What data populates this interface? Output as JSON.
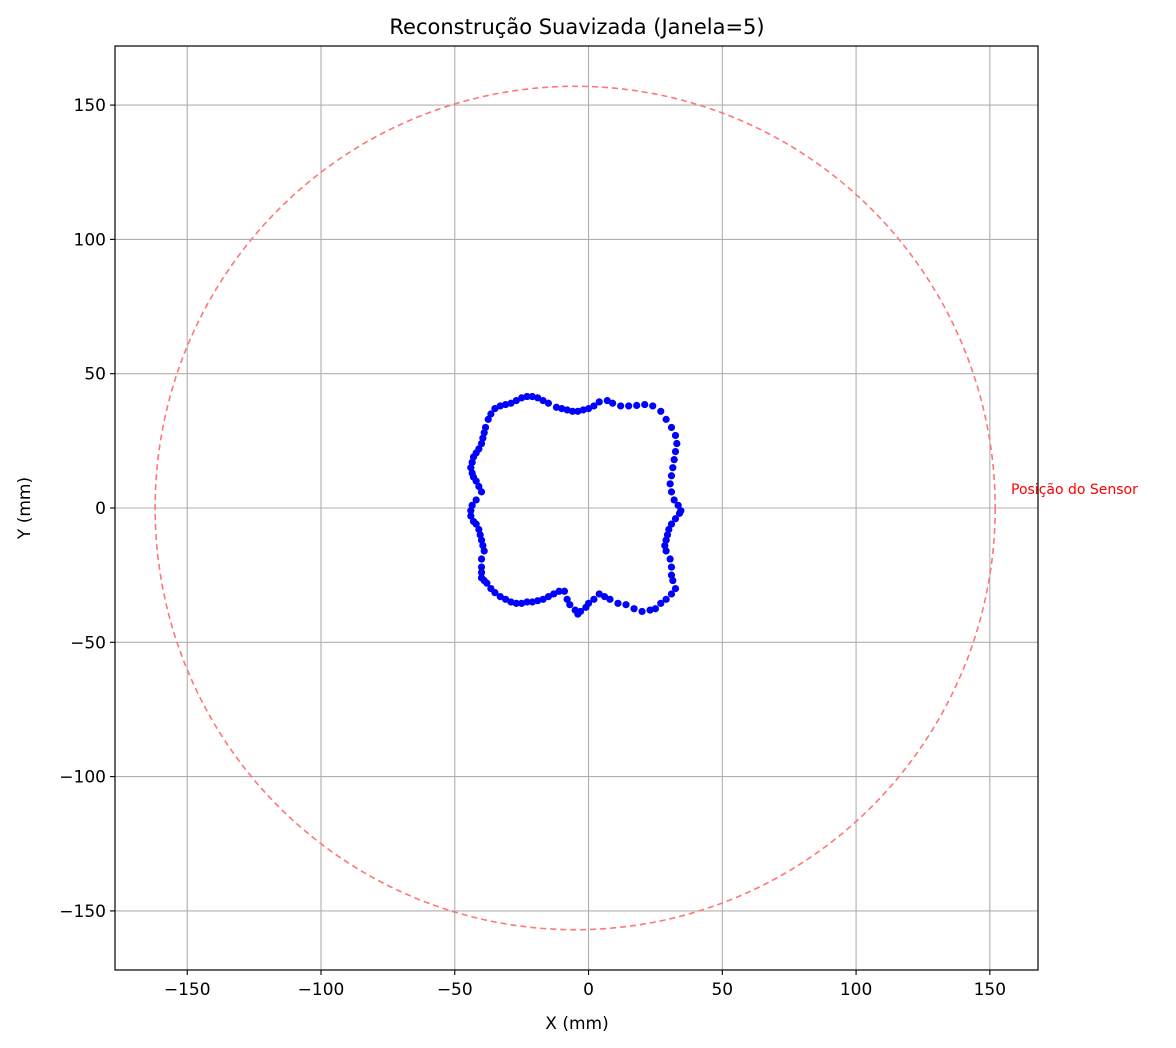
{
  "chart_data": {
    "type": "scatter",
    "title": "Reconstrução Suavizada (Janela=5)",
    "xlabel": "X (mm)",
    "ylabel": "Y (mm)",
    "xlim": [
      -177,
      168
    ],
    "ylim": [
      -172,
      172
    ],
    "grid": true,
    "xticks": [
      -150,
      -100,
      -50,
      0,
      50,
      100,
      150
    ],
    "yticks": [
      -150,
      -100,
      -50,
      0,
      50,
      100,
      150
    ],
    "xtick_labels": [
      "−150",
      "−100",
      "−50",
      "0",
      "50",
      "100",
      "150"
    ],
    "ytick_labels": [
      "−150",
      "−100",
      "−50",
      "0",
      "50",
      "100",
      "150"
    ],
    "sensor_path": {
      "style": "dashed circle",
      "color": "#ff7777",
      "center": [
        -5,
        0
      ],
      "radius": 157
    },
    "annotation": {
      "text": "Posição do Sensor",
      "x": 157,
      "y": 5,
      "color": "#ff0000"
    },
    "series": [
      {
        "color": "#0000ff",
        "points": [
          [
            34.5,
            -1
          ],
          [
            33.5,
            1
          ],
          [
            32,
            3
          ],
          [
            31,
            6
          ],
          [
            30.5,
            9
          ],
          [
            31,
            12
          ],
          [
            31.5,
            15
          ],
          [
            32,
            18
          ],
          [
            32.5,
            21
          ],
          [
            33,
            24
          ],
          [
            32.5,
            27
          ],
          [
            31,
            30
          ],
          [
            29,
            33
          ],
          [
            27,
            36
          ],
          [
            24,
            38
          ],
          [
            21,
            38.5
          ],
          [
            18,
            38.2
          ],
          [
            15,
            38
          ],
          [
            12,
            38
          ],
          [
            9,
            39
          ],
          [
            7,
            40
          ],
          [
            4,
            39.5
          ],
          [
            2,
            38
          ],
          [
            0,
            37
          ],
          [
            -2,
            36.5
          ],
          [
            -4,
            36
          ],
          [
            -6,
            36
          ],
          [
            -8,
            36.5
          ],
          [
            -10,
            37
          ],
          [
            -12,
            37.5
          ],
          [
            -15,
            39
          ],
          [
            -17,
            40
          ],
          [
            -19,
            41
          ],
          [
            -21,
            41.5
          ],
          [
            -23,
            41.5
          ],
          [
            -25,
            41
          ],
          [
            -27,
            40
          ],
          [
            -29,
            39
          ],
          [
            -31,
            38.5
          ],
          [
            -33,
            38
          ],
          [
            -35,
            37
          ],
          [
            -36.5,
            35
          ],
          [
            -37.5,
            33
          ],
          [
            -38.5,
            30
          ],
          [
            -39,
            28
          ],
          [
            -39.5,
            26
          ],
          [
            -40,
            24
          ],
          [
            -41,
            22
          ],
          [
            -42,
            20.5
          ],
          [
            -43,
            19
          ],
          [
            -43.5,
            17
          ],
          [
            -44,
            15
          ],
          [
            -43.5,
            13
          ],
          [
            -43,
            11.5
          ],
          [
            -42,
            10
          ],
          [
            -41,
            8
          ],
          [
            -40,
            6
          ],
          [
            -42,
            3
          ],
          [
            -43.5,
            1
          ],
          [
            -44,
            -1
          ],
          [
            -44,
            -3
          ],
          [
            -43,
            -5
          ],
          [
            -42,
            -6
          ],
          [
            -41,
            -8
          ],
          [
            -40.5,
            -10
          ],
          [
            -40,
            -12
          ],
          [
            -39.5,
            -14
          ],
          [
            -39,
            -16
          ],
          [
            -40,
            -19
          ],
          [
            -40,
            -22
          ],
          [
            -40,
            -24
          ],
          [
            -40,
            -26
          ],
          [
            -39,
            -27
          ],
          [
            -38,
            -28
          ],
          [
            -36.5,
            -30
          ],
          [
            -35,
            -31.5
          ],
          [
            -33,
            -33
          ],
          [
            -31,
            -34
          ],
          [
            -29,
            -35
          ],
          [
            -27,
            -35.5
          ],
          [
            -25,
            -35.5
          ],
          [
            -23,
            -35
          ],
          [
            -21,
            -35
          ],
          [
            -19,
            -34.5
          ],
          [
            -17,
            -34
          ],
          [
            -15,
            -33
          ],
          [
            -13,
            -32
          ],
          [
            -11,
            -31
          ],
          [
            -9,
            -31
          ],
          [
            -8,
            -34
          ],
          [
            -7,
            -36
          ],
          [
            -5,
            -38
          ],
          [
            -4,
            -39.5
          ],
          [
            -3,
            -38.5
          ],
          [
            -1,
            -37
          ],
          [
            0,
            -35.5
          ],
          [
            2,
            -34
          ],
          [
            4,
            -32
          ],
          [
            6,
            -33
          ],
          [
            8,
            -34
          ],
          [
            11,
            -35.5
          ],
          [
            14,
            -36
          ],
          [
            17,
            -37.5
          ],
          [
            20,
            -38.5
          ],
          [
            23,
            -38
          ],
          [
            25,
            -37.5
          ],
          [
            27,
            -35.5
          ],
          [
            29,
            -34
          ],
          [
            31,
            -32
          ],
          [
            32.5,
            -30
          ],
          [
            31.5,
            -27
          ],
          [
            31,
            -25
          ],
          [
            31,
            -22
          ],
          [
            30.5,
            -19
          ],
          [
            29,
            -16
          ],
          [
            28.5,
            -14
          ],
          [
            29,
            -12
          ],
          [
            29.5,
            -10
          ],
          [
            30,
            -8
          ],
          [
            31,
            -6
          ],
          [
            32.5,
            -4
          ],
          [
            34,
            -2
          ]
        ]
      }
    ]
  }
}
